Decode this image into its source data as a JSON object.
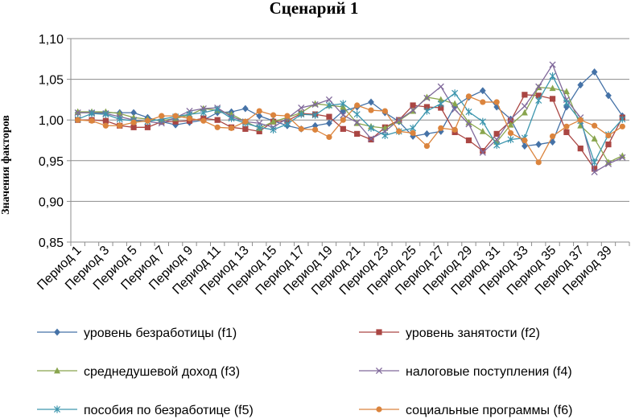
{
  "chart_data": {
    "type": "line",
    "title": "Сценарий 1",
    "ylabel": "Значения факторов",
    "xlabel": "",
    "ylim": [
      0.85,
      1.1
    ],
    "yticks": [
      "0,85",
      "0,90",
      "0,95",
      "1,00",
      "1,05",
      "1,10"
    ],
    "ytick_values": [
      0.85,
      0.9,
      0.95,
      1.0,
      1.05,
      1.1
    ],
    "xtick_labels": [
      "Период 1",
      "Период 3",
      "Период 5",
      "Период 7",
      "Период 9",
      "Период 11",
      "Период 13",
      "Период 15",
      "Период 17",
      "Период 19",
      "Период 21",
      "Период 23",
      "Период 25",
      "Период 27",
      "Период 29",
      "Период 31",
      "Период 33",
      "Период 35",
      "Период 37",
      "Период 39"
    ],
    "categories": [
      "Период 1",
      "Период 2",
      "Период 3",
      "Период 4",
      "Период 5",
      "Период 6",
      "Период 7",
      "Период 8",
      "Период 9",
      "Период 10",
      "Период 11",
      "Период 12",
      "Период 13",
      "Период 14",
      "Период 15",
      "Период 16",
      "Период 17",
      "Период 18",
      "Период 19",
      "Период 20",
      "Период 21",
      "Период 22",
      "Период 23",
      "Период 24",
      "Период 25",
      "Период 26",
      "Период 27",
      "Период 28",
      "Период 29",
      "Период 30",
      "Период 31",
      "Период 32",
      "Период 33",
      "Период 34",
      "Период 35",
      "Период 36",
      "Период 37",
      "Период 38",
      "Период 39",
      "Период 40"
    ],
    "grid": "horizontal",
    "legend_position": "bottom",
    "series": [
      {
        "name": "уровень безработицы (f1)",
        "color": "#4572A7",
        "marker": "diamond",
        "values": [
          1.009,
          1.009,
          1.009,
          1.009,
          1.009,
          1.003,
          0.998,
          0.994,
          0.997,
          1.0,
          1.009,
          1.01,
          1.014,
          1.005,
          0.999,
          0.993,
          0.989,
          0.993,
          0.996,
          1.011,
          1.016,
          1.022,
          1.009,
          0.998,
          0.98,
          0.983,
          0.986,
          1.017,
          1.028,
          1.036,
          1.016,
          1.001,
          0.968,
          0.97,
          0.973,
          1.016,
          1.043,
          1.059,
          1.03,
          1.005
        ]
      },
      {
        "name": "уровень занятости (f2)",
        "color": "#AA4643",
        "marker": "square",
        "values": [
          1.0,
          1.0,
          0.999,
          0.993,
          0.991,
          0.991,
          0.998,
          0.998,
          0.999,
          1.002,
          1.0,
          0.991,
          0.989,
          0.986,
          0.998,
          0.999,
          1.008,
          1.007,
          1.004,
          0.989,
          0.983,
          0.976,
          0.991,
          1.0,
          1.018,
          1.016,
          1.015,
          0.985,
          0.975,
          0.962,
          0.983,
          0.999,
          1.031,
          1.03,
          1.026,
          0.985,
          0.965,
          0.94,
          0.97,
          1.003
        ]
      },
      {
        "name": "среднедушевой доход (f3)",
        "color": "#89A54E",
        "marker": "triangle",
        "values": [
          1.01,
          1.01,
          1.01,
          1.008,
          1.003,
          1.001,
          0.999,
          1.002,
          1.006,
          1.014,
          1.012,
          1.007,
          0.998,
          0.99,
          0.998,
          1.003,
          1.009,
          1.02,
          1.018,
          1.016,
          0.996,
          0.992,
          0.99,
          0.999,
          1.011,
          1.028,
          1.025,
          1.02,
          0.997,
          0.986,
          0.973,
          0.994,
          1.009,
          1.04,
          1.039,
          1.035,
          0.993,
          0.977,
          0.948,
          0.956
        ]
      },
      {
        "name": "налоговые поступления (f4)",
        "color": "#80699B",
        "marker": "x",
        "values": [
          1.009,
          1.009,
          1.008,
          1.004,
          1.0,
          0.998,
          0.996,
          1.003,
          1.011,
          1.014,
          1.015,
          1.004,
          0.998,
          0.996,
          0.991,
          1.002,
          1.015,
          1.019,
          1.025,
          1.006,
          0.997,
          0.977,
          0.986,
          1.0,
          1.012,
          1.027,
          1.041,
          1.013,
          0.995,
          0.96,
          0.976,
          1.001,
          1.017,
          1.041,
          1.068,
          1.025,
          1.003,
          0.936,
          0.946,
          0.954
        ]
      },
      {
        "name": "пособия по безработице (f5)",
        "color": "#3D96AE",
        "marker": "star",
        "values": [
          1.001,
          1.008,
          1.007,
          1.001,
          0.999,
          0.998,
          1.001,
          1.004,
          1.007,
          1.009,
          1.013,
          1.002,
          0.996,
          0.991,
          0.988,
          0.995,
          1.007,
          1.006,
          1.018,
          1.02,
          1.007,
          0.99,
          0.981,
          0.986,
          0.99,
          1.011,
          1.02,
          1.033,
          1.01,
          0.998,
          0.969,
          0.976,
          0.978,
          1.024,
          1.054,
          1.021,
          0.999,
          0.948,
          0.982,
          1.001
        ]
      },
      {
        "name": "социальные программы (f6)",
        "color": "#DB843D",
        "marker": "circle",
        "values": [
          1.0,
          0.999,
          0.993,
          0.993,
          0.997,
          0.999,
          1.005,
          1.005,
          1.002,
          0.999,
          0.991,
          0.99,
          0.998,
          1.011,
          1.006,
          1.005,
          0.989,
          0.988,
          0.979,
          1.0,
          1.018,
          1.012,
          1.011,
          0.986,
          0.984,
          0.968,
          0.99,
          0.988,
          1.029,
          1.022,
          1.022,
          0.984,
          0.975,
          0.948,
          0.98,
          0.992,
          1.0,
          0.993,
          0.981,
          0.992
        ]
      }
    ]
  }
}
